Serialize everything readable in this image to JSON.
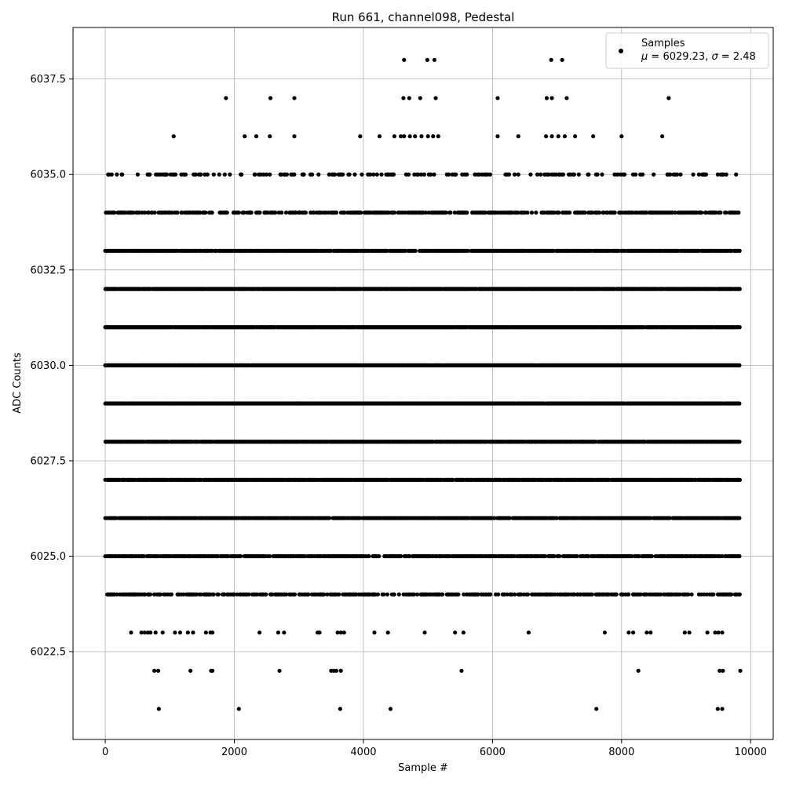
{
  "chart_data": {
    "type": "scatter",
    "title": "Run 661, channel098, Pedestal",
    "xlabel": "Sample #",
    "ylabel": "ADC Counts",
    "xlim": [
      -500,
      10350
    ],
    "ylim": [
      6020.2,
      6038.85
    ],
    "xticks": [
      0,
      2000,
      4000,
      6000,
      8000,
      10000
    ],
    "xtick_labels": [
      "0",
      "2000",
      "4000",
      "6000",
      "8000",
      "10000"
    ],
    "yticks": [
      6022.5,
      6025.0,
      6027.5,
      6030.0,
      6032.5,
      6035.0,
      6037.5
    ],
    "ytick_labels": [
      "6022.5",
      "6025.0",
      "6027.5",
      "6030.0",
      "6032.5",
      "6035.0",
      "6037.5"
    ],
    "grid": true,
    "legend": {
      "placement": "top-right",
      "label": "Samples",
      "stats_parts": [
        "μ",
        " = 6029.23, ",
        "σ",
        " = 2.48"
      ]
    },
    "marker_color": "#000000",
    "x_max": 9840,
    "series": [
      {
        "name": "Samples",
        "levels": [
          {
            "y": 6021,
            "x": [
              830,
              2070,
              3640,
              4420,
              7610,
              9490,
              9560
            ]
          },
          {
            "y": 6022,
            "x": [
              760,
              820,
              1320,
              1640,
              1660,
              2700,
              3500,
              3540,
              3580,
              3650,
              5520,
              8260,
              9520,
              9570,
              9840
            ]
          },
          {
            "y": 6023,
            "x": [
              400,
              560,
              610,
              660,
              700,
              780,
              890,
              1080,
              1160,
              1280,
              1360,
              1560,
              1630,
              1660,
              2390,
              2680,
              2770,
              3290,
              3320,
              3600,
              3650,
              3700,
              4170,
              4380,
              4950,
              5420,
              5550,
              6560,
              7740,
              8110,
              8180,
              8390,
              8450,
              8980,
              9050,
              9330,
              9450,
              9500,
              9560
            ]
          },
          {
            "y": 6036,
            "x": [
              1060,
              2160,
              2340,
              2550,
              2930,
              3950,
              4250,
              4480,
              4580,
              4630,
              4720,
              4800,
              4900,
              5000,
              5080,
              5160,
              6080,
              6400,
              6830,
              6920,
              7020,
              7120,
              7280,
              7560,
              8000,
              8630
            ]
          },
          {
            "y": 6037,
            "x": [
              1870,
              2560,
              2930,
              4620,
              4710,
              4880,
              5120,
              6080,
              6840,
              6920,
              7150,
              8730
            ]
          },
          {
            "y": 6038,
            "x": [
              4630,
              4990,
              5100,
              6910,
              7080
            ]
          }
        ],
        "dense_levels": [
          {
            "y": 6024,
            "coverage": 0.55
          },
          {
            "y": 6025,
            "coverage": 0.75
          },
          {
            "y": 6026,
            "coverage": 0.85
          },
          {
            "y": 6027,
            "coverage": 0.95
          },
          {
            "y": 6028,
            "coverage": 0.98
          },
          {
            "y": 6029,
            "coverage": 0.99
          },
          {
            "y": 6030,
            "coverage": 0.99
          },
          {
            "y": 6031,
            "coverage": 0.97
          },
          {
            "y": 6032,
            "coverage": 0.95
          },
          {
            "y": 6033,
            "coverage": 0.82
          },
          {
            "y": 6034,
            "coverage": 0.55
          },
          {
            "y": 6035,
            "coverage": 0.25
          }
        ]
      }
    ]
  }
}
